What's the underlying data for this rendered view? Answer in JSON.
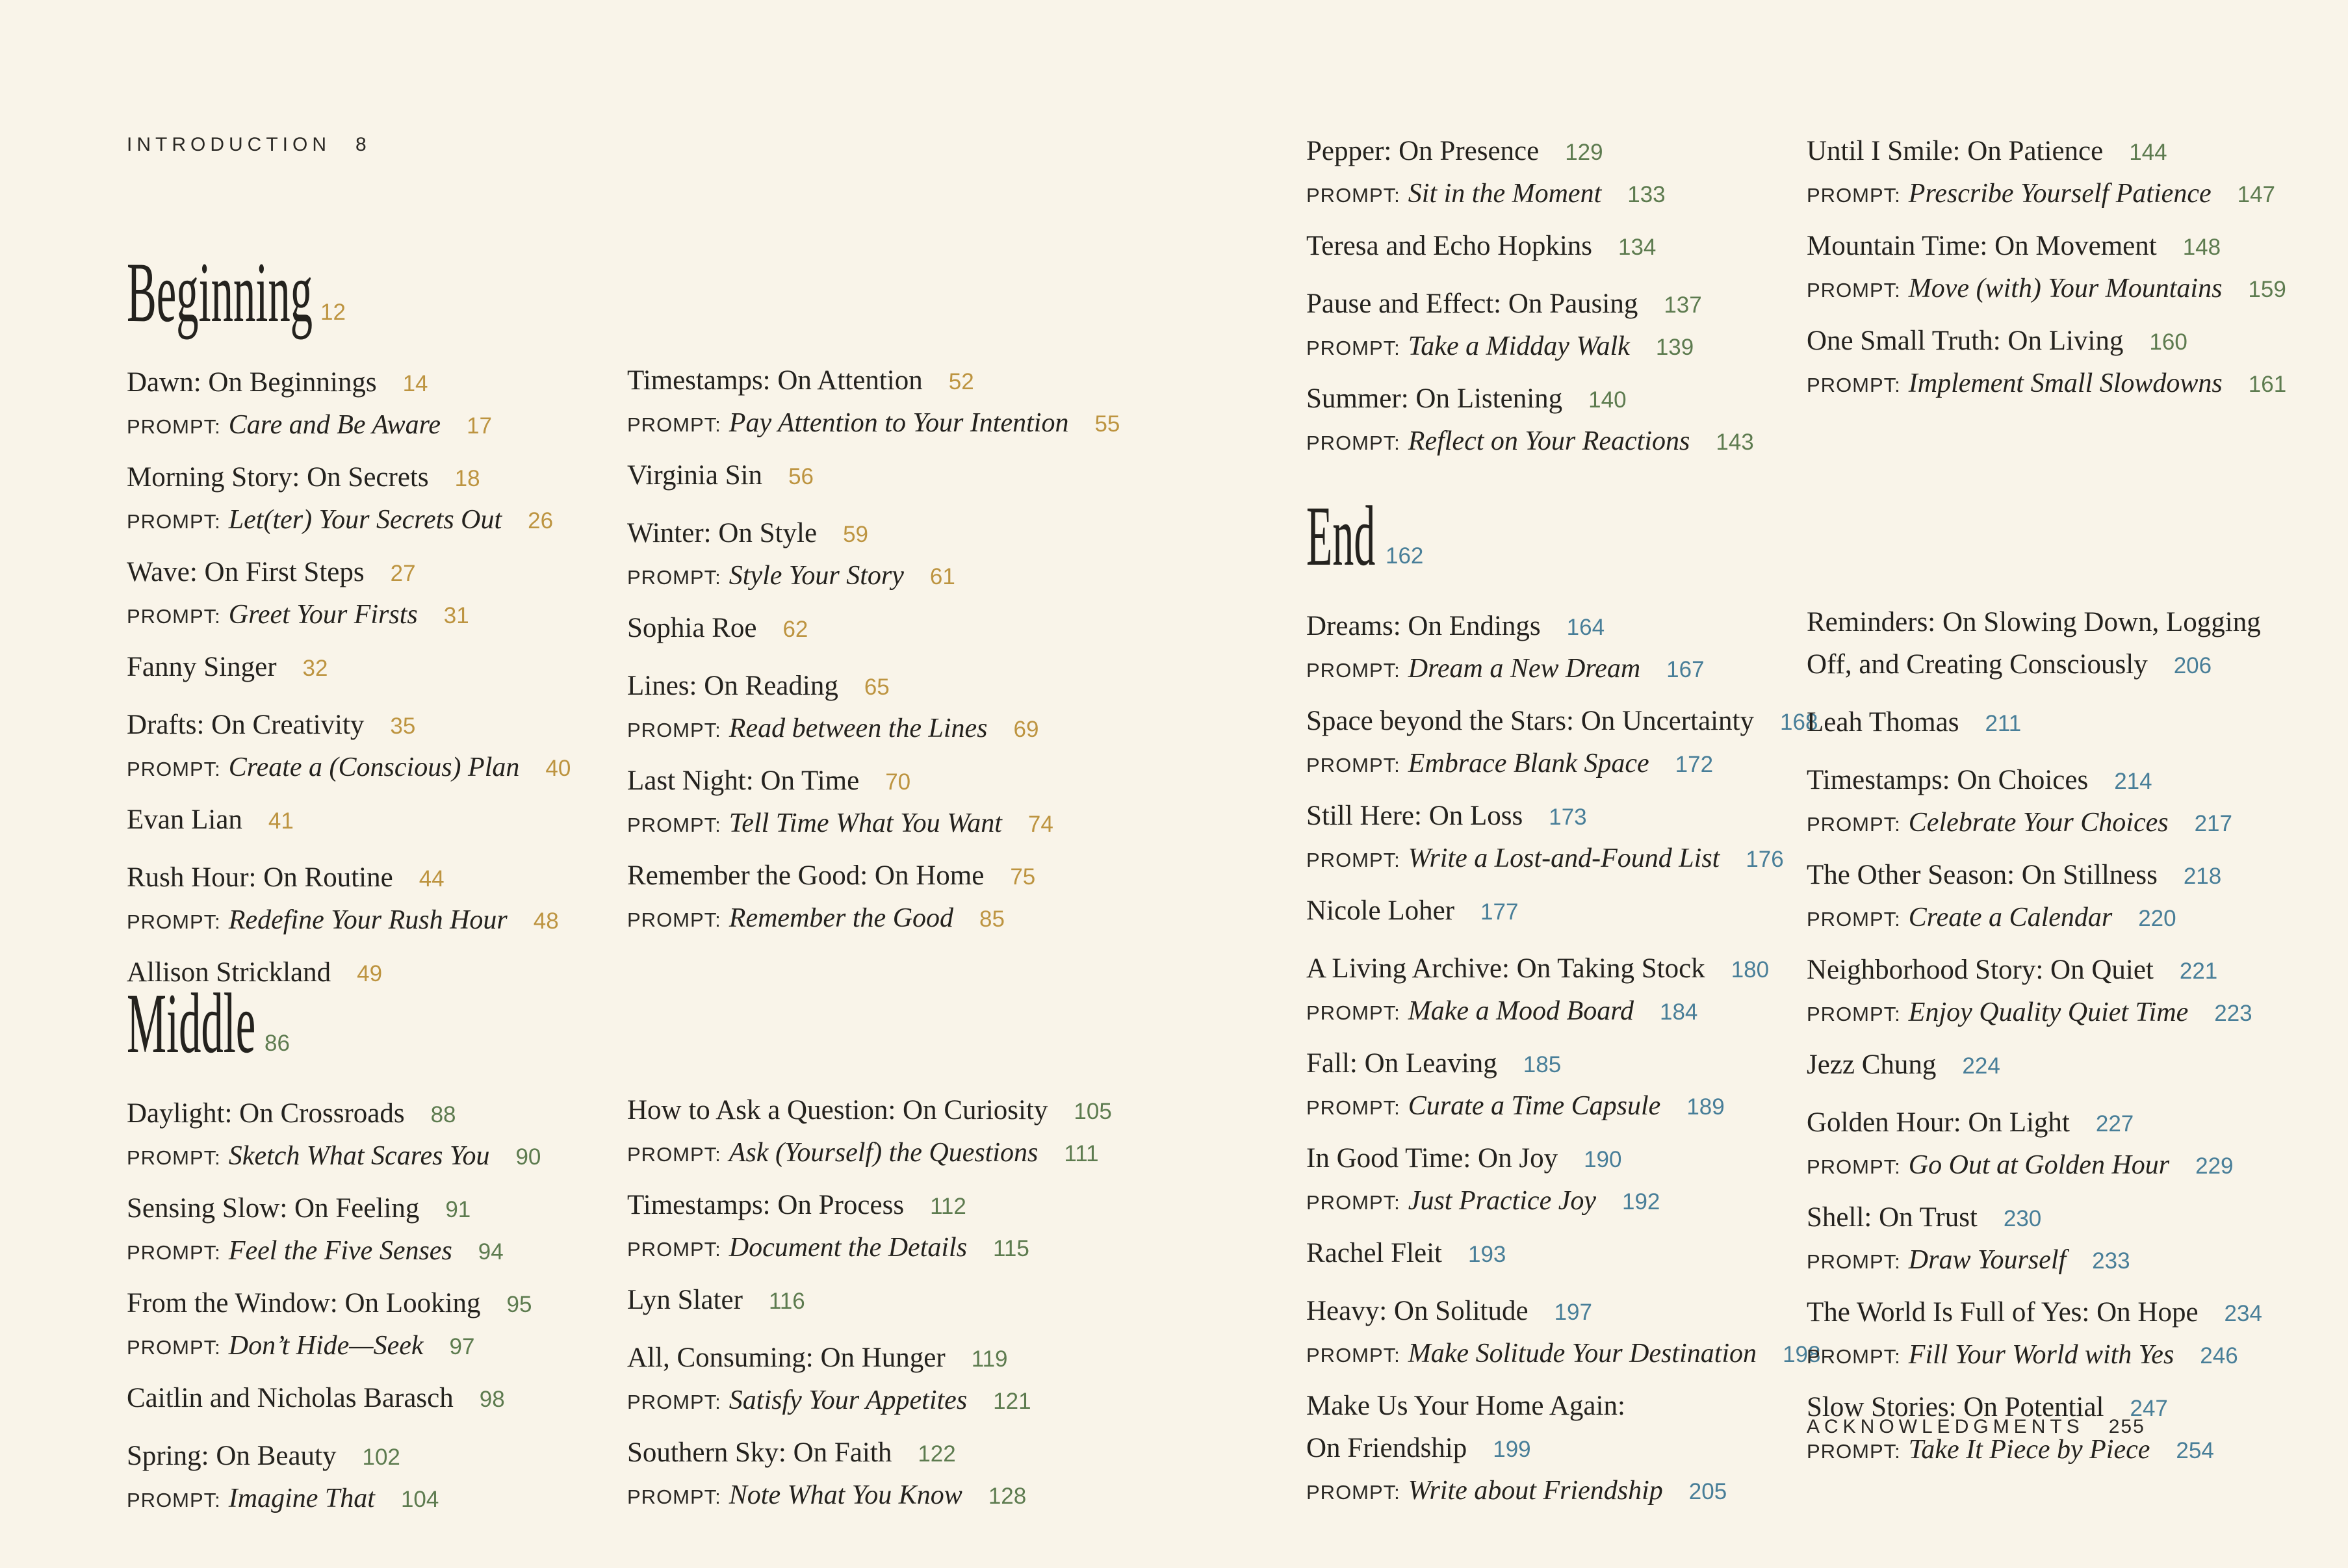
{
  "labels": {
    "prompt": "PROMPT:"
  },
  "colors": {
    "background": "#f9f4e9",
    "ink": "#24221e",
    "beginning": "#bd9440",
    "middle": "#5d7b4f",
    "end": "#487e98"
  },
  "columns": {
    "col1a": {
      "blocks": [
        {
          "type": "toplabel",
          "label": "INTRODUCTION",
          "page": "8"
        },
        {
          "type": "heading",
          "key": "beginning",
          "text": "Beginning",
          "page": "12",
          "accent": "beginning"
        },
        {
          "type": "entry",
          "title": "Dawn: On Beginnings",
          "page": "14",
          "accent": "beginning",
          "prompt": "Care and Be Aware",
          "promptPage": "17"
        },
        {
          "type": "entry",
          "title": "Morning Story: On Secrets",
          "page": "18",
          "accent": "beginning",
          "prompt": "Let(ter) Your Secrets Out",
          "promptPage": "26"
        },
        {
          "type": "entry",
          "title": "Wave: On First Steps",
          "page": "27",
          "accent": "beginning",
          "prompt": "Greet Your Firsts",
          "promptPage": "31"
        },
        {
          "type": "entry",
          "title": "Fanny Singer",
          "page": "32",
          "accent": "beginning"
        },
        {
          "type": "entry",
          "title": "Drafts: On Creativity",
          "page": "35",
          "accent": "beginning",
          "prompt": "Create a (Conscious) Plan",
          "promptPage": "40"
        },
        {
          "type": "entry",
          "title": "Evan Lian",
          "page": "41",
          "accent": "beginning"
        },
        {
          "type": "entry",
          "title": "Rush Hour: On Routine",
          "page": "44",
          "accent": "beginning",
          "prompt": "Redefine Your Rush Hour",
          "promptPage": "48"
        },
        {
          "type": "entry",
          "title": "Allison Strickland",
          "page": "49",
          "accent": "beginning"
        }
      ]
    },
    "col1b": {
      "blocks": [
        {
          "type": "heading",
          "key": "middle",
          "text": "Middle",
          "page": "86",
          "accent": "middle"
        },
        {
          "type": "entry",
          "title": "Daylight: On Crossroads",
          "page": "88",
          "accent": "middle",
          "prompt": "Sketch What Scares You",
          "promptPage": "90"
        },
        {
          "type": "entry",
          "title": "Sensing Slow: On Feeling",
          "page": "91",
          "accent": "middle",
          "prompt": "Feel the Five Senses",
          "promptPage": "94"
        },
        {
          "type": "entry",
          "title": "From the Window: On Looking",
          "page": "95",
          "accent": "middle",
          "prompt": "Don’t Hide—Seek",
          "promptPage": "97"
        },
        {
          "type": "entry",
          "title": "Caitlin and Nicholas Barasch",
          "page": "98",
          "accent": "middle"
        },
        {
          "type": "entry",
          "title": "Spring: On Beauty",
          "page": "102",
          "accent": "middle",
          "prompt": "Imagine That",
          "promptPage": "104"
        }
      ]
    },
    "col2a": {
      "blocks": [
        {
          "type": "entry",
          "title": "Timestamps: On Attention",
          "page": "52",
          "accent": "beginning",
          "prompt": "Pay Attention to Your Intention",
          "promptPage": "55"
        },
        {
          "type": "entry",
          "title": "Virginia Sin",
          "page": "56",
          "accent": "beginning"
        },
        {
          "type": "entry",
          "title": "Winter: On Style",
          "page": "59",
          "accent": "beginning",
          "prompt": "Style Your Story",
          "promptPage": "61"
        },
        {
          "type": "entry",
          "title": "Sophia Roe",
          "page": "62",
          "accent": "beginning"
        },
        {
          "type": "entry",
          "title": "Lines: On Reading",
          "page": "65",
          "accent": "beginning",
          "prompt": "Read between the Lines",
          "promptPage": "69"
        },
        {
          "type": "entry",
          "title": "Last Night: On Time",
          "page": "70",
          "accent": "beginning",
          "prompt": "Tell Time What You Want",
          "promptPage": "74"
        },
        {
          "type": "entry",
          "title": "Remember the Good: On Home",
          "page": "75",
          "accent": "beginning",
          "prompt": "Remember the Good",
          "promptPage": "85"
        }
      ]
    },
    "col2b": {
      "blocks": [
        {
          "type": "entry",
          "title": "How to Ask a Question: On Curiosity",
          "page": "105",
          "accent": "middle",
          "prompt": "Ask (Yourself) the Questions",
          "promptPage": "111"
        },
        {
          "type": "entry",
          "title": "Timestamps: On Process",
          "page": "112",
          "accent": "middle",
          "prompt": "Document the Details",
          "promptPage": "115"
        },
        {
          "type": "entry",
          "title": "Lyn Slater",
          "page": "116",
          "accent": "middle"
        },
        {
          "type": "entry",
          "title": "All, Consuming: On Hunger",
          "page": "119",
          "accent": "middle",
          "prompt": "Satisfy Your Appetites",
          "promptPage": "121"
        },
        {
          "type": "entry",
          "title": "Southern Sky: On Faith",
          "page": "122",
          "accent": "middle",
          "prompt": "Note What You Know",
          "promptPage": "128"
        }
      ]
    },
    "col3a": {
      "blocks": [
        {
          "type": "entry",
          "title": "Pepper: On Presence",
          "page": "129",
          "accent": "middle",
          "prompt": "Sit in the Moment",
          "promptPage": "133"
        },
        {
          "type": "entry",
          "title": "Teresa and Echo Hopkins",
          "page": "134",
          "accent": "middle"
        },
        {
          "type": "entry",
          "title": "Pause and Effect: On Pausing",
          "page": "137",
          "accent": "middle",
          "prompt": "Take a Midday Walk",
          "promptPage": "139"
        },
        {
          "type": "entry",
          "title": "Summer: On Listening",
          "page": "140",
          "accent": "middle",
          "prompt": "Reflect on Your Reactions",
          "promptPage": "143"
        }
      ]
    },
    "col3b": {
      "blocks": [
        {
          "type": "heading",
          "key": "end",
          "text": "End",
          "page": "162",
          "accent": "end"
        },
        {
          "type": "entry",
          "title": "Dreams: On Endings",
          "page": "164",
          "accent": "end",
          "prompt": "Dream a New Dream",
          "promptPage": "167"
        },
        {
          "type": "entry",
          "title": "Space beyond the Stars: On Uncertainty",
          "page": "168",
          "accent": "end",
          "prompt": "Embrace Blank Space",
          "promptPage": "172"
        },
        {
          "type": "entry",
          "title": "Still Here: On Loss",
          "page": "173",
          "accent": "end",
          "prompt": "Write a Lost-and-Found List",
          "promptPage": "176"
        },
        {
          "type": "entry",
          "title": "Nicole Loher",
          "page": "177",
          "accent": "end"
        },
        {
          "type": "entry",
          "title": "A Living Archive: On Taking Stock",
          "page": "180",
          "accent": "end",
          "prompt": "Make a Mood Board",
          "promptPage": "184"
        },
        {
          "type": "entry",
          "title": "Fall: On Leaving",
          "page": "185",
          "accent": "end",
          "prompt": "Curate a Time Capsule",
          "promptPage": "189"
        },
        {
          "type": "entry",
          "title": "In Good Time: On Joy",
          "page": "190",
          "accent": "end",
          "prompt": "Just Practice Joy",
          "promptPage": "192"
        },
        {
          "type": "entry",
          "title": "Rachel Fleit",
          "page": "193",
          "accent": "end"
        },
        {
          "type": "entry",
          "title": "Heavy: On Solitude",
          "page": "197",
          "accent": "end",
          "prompt": "Make Solitude Your Destination",
          "promptPage": "198"
        },
        {
          "type": "entry",
          "title": "Make Us Your Home Again:",
          "title2": "On Friendship",
          "page": "199",
          "accent": "end",
          "prompt": "Write about Friendship",
          "promptPage": "205"
        }
      ]
    },
    "col4a": {
      "blocks": [
        {
          "type": "entry",
          "title": "Until I Smile: On Patience",
          "page": "144",
          "accent": "middle",
          "prompt": "Prescribe Yourself Patience",
          "promptPage": "147"
        },
        {
          "type": "entry",
          "title": "Mountain Time: On Movement",
          "page": "148",
          "accent": "middle",
          "prompt": "Move (with) Your Mountains",
          "promptPage": "159"
        },
        {
          "type": "entry",
          "title": "One Small Truth: On Living",
          "page": "160",
          "accent": "middle",
          "prompt": "Implement Small Slowdowns",
          "promptPage": "161"
        }
      ]
    },
    "col4b": {
      "blocks": [
        {
          "type": "entry",
          "title": "Reminders: On Slowing Down, Logging",
          "title2": "Off, and Creating Consciously",
          "page": "206",
          "accent": "end"
        },
        {
          "type": "entry",
          "title": "Leah Thomas",
          "page": "211",
          "accent": "end"
        },
        {
          "type": "entry",
          "title": "Timestamps: On Choices",
          "page": "214",
          "accent": "end",
          "prompt": "Celebrate Your Choices",
          "promptPage": "217"
        },
        {
          "type": "entry",
          "title": "The Other Season: On Stillness",
          "page": "218",
          "accent": "end",
          "prompt": "Create a Calendar",
          "promptPage": "220"
        },
        {
          "type": "entry",
          "title": "Neighborhood Story: On Quiet",
          "page": "221",
          "accent": "end",
          "prompt": "Enjoy Quality Quiet Time",
          "promptPage": "223"
        },
        {
          "type": "entry",
          "title": "Jezz Chung",
          "page": "224",
          "accent": "end"
        },
        {
          "type": "entry",
          "title": "Golden Hour: On Light",
          "page": "227",
          "accent": "end",
          "prompt": "Go Out at Golden Hour",
          "promptPage": "229"
        },
        {
          "type": "entry",
          "title": "Shell: On Trust",
          "page": "230",
          "accent": "end",
          "prompt": "Draw Yourself",
          "promptPage": "233"
        },
        {
          "type": "entry",
          "title": "The World Is Full of Yes: On Hope",
          "page": "234",
          "accent": "end",
          "prompt": "Fill Your World with Yes",
          "promptPage": "246"
        },
        {
          "type": "entry",
          "title": "Slow Stories: On Potential",
          "page": "247",
          "accent": "end",
          "prompt": "Take It Piece by Piece",
          "promptPage": "254"
        }
      ]
    },
    "ack": {
      "blocks": [
        {
          "type": "toplabel",
          "label": "ACKNOWLEDGMENTS",
          "page": "255"
        }
      ]
    }
  }
}
